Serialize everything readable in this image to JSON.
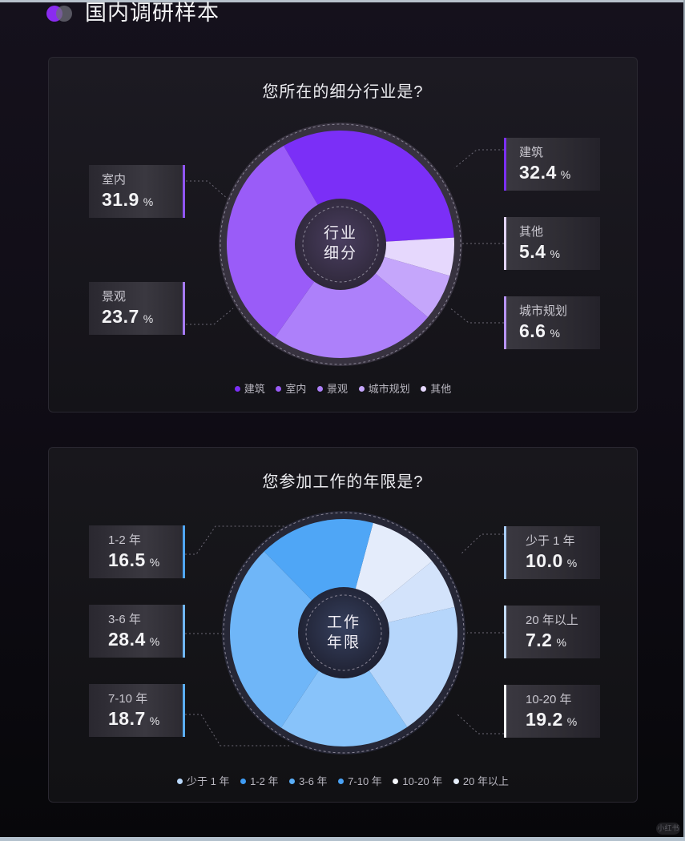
{
  "header": {
    "title": "国内调研样本"
  },
  "industry": {
    "title": "您所在的细分行业是?",
    "center_line1": "行业",
    "center_line2": "细分",
    "labels": [
      {
        "name": "室内",
        "value": "31.9",
        "pct": "%"
      },
      {
        "name": "景观",
        "value": "23.7",
        "pct": "%"
      },
      {
        "name": "建筑",
        "value": "32.4",
        "pct": "%"
      },
      {
        "name": "其他",
        "value": "5.4",
        "pct": "%"
      },
      {
        "name": "城市规划",
        "value": "6.6",
        "pct": "%"
      }
    ],
    "legend": [
      "建筑",
      "室内",
      "景观",
      "城市规划",
      "其他"
    ],
    "colors": {
      "建筑": "#7b2ff7",
      "室内": "#9a5cf8",
      "景观": "#ad80fa",
      "城市规划": "#c5a6fb",
      "其他": "#e6d8fd"
    }
  },
  "years": {
    "title": "您参加工作的年限是?",
    "center_line1": "工作",
    "center_line2": "年限",
    "labels": [
      {
        "name": "1-2 年",
        "value": "16.5",
        "pct": "%"
      },
      {
        "name": "3-6 年",
        "value": "28.4",
        "pct": "%"
      },
      {
        "name": "7-10 年",
        "value": "18.7",
        "pct": "%"
      },
      {
        "name": "少于 1 年",
        "value": "10.0",
        "pct": "%"
      },
      {
        "name": "20 年以上",
        "value": "7.2",
        "pct": "%"
      },
      {
        "name": "10-20 年",
        "value": "19.2",
        "pct": "%"
      }
    ],
    "legend": [
      "少于 1 年",
      "1-2 年",
      "3-6 年",
      "7-10 年",
      "10-20 年",
      "20 年以上"
    ],
    "colors": {
      "少于 1 年": "#e4ecfb",
      "1-2 年": "#4fa6f6",
      "3-6 年": "#6fb6f8",
      "7-10 年": "#88c3fa",
      "10-20 年": "#b6d6fb",
      "20 年以上": "#d3e3fb"
    }
  },
  "watermark": "小红书",
  "chart_data": [
    {
      "type": "pie",
      "title": "您所在的细分行业是?",
      "center_text": "行业细分",
      "categories": [
        "建筑",
        "室内",
        "景观",
        "城市规划",
        "其他"
      ],
      "values": [
        32.4,
        31.9,
        23.7,
        6.6,
        5.4
      ],
      "unit": "%",
      "legend_position": "bottom"
    },
    {
      "type": "pie",
      "title": "您参加工作的年限是?",
      "center_text": "工作年限",
      "categories": [
        "少于 1 年",
        "1-2 年",
        "3-6 年",
        "7-10 年",
        "10-20 年",
        "20 年以上"
      ],
      "values": [
        10.0,
        16.5,
        28.4,
        18.7,
        19.2,
        7.2
      ],
      "unit": "%",
      "legend_position": "bottom"
    }
  ]
}
